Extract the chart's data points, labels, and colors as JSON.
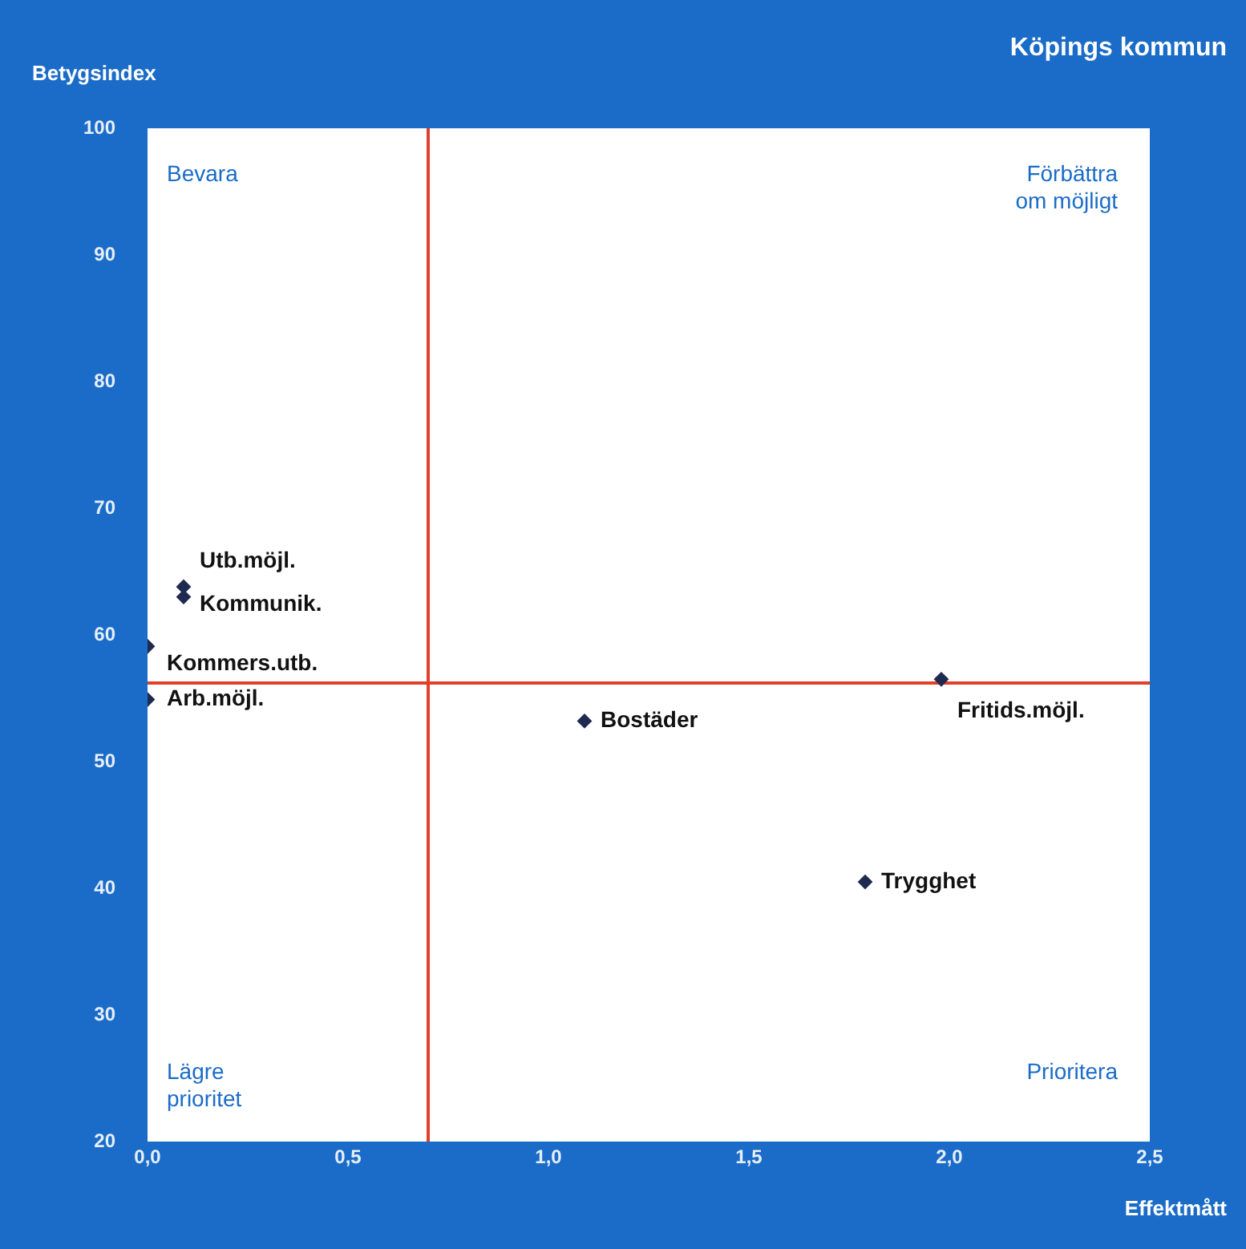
{
  "chart_data": {
    "type": "scatter",
    "title": "Köpings kommun",
    "xlabel": "Effektmått",
    "ylabel": "Betygsindex",
    "xlim": [
      0,
      2.5
    ],
    "ylim": [
      20,
      100
    ],
    "xticks": [
      {
        "value": 0,
        "label": "0,0"
      },
      {
        "value": 0.5,
        "label": "0,5"
      },
      {
        "value": 1,
        "label": "1,0"
      },
      {
        "value": 1.5,
        "label": "1,5"
      },
      {
        "value": 2,
        "label": "2,0"
      },
      {
        "value": 2.5,
        "label": "2,5"
      }
    ],
    "yticks": [
      20,
      30,
      40,
      50,
      60,
      70,
      80,
      90,
      100
    ],
    "marker": "diamond",
    "series": [
      {
        "name": "Utb.möjl.",
        "color": "#1f2a50",
        "x": [
          0.09
        ],
        "values": [
          63.8
        ]
      },
      {
        "name": "Kommunik.",
        "color": "#1f2a50",
        "x": [
          0.09
        ],
        "values": [
          63.0
        ]
      },
      {
        "name": "Kommers.utb.",
        "color": "#1f2a50",
        "x": [
          0
        ],
        "values": [
          59.1
        ]
      },
      {
        "name": "Arb.möjl.",
        "color": "#1f2a50",
        "x": [
          0
        ],
        "values": [
          54.9
        ]
      },
      {
        "name": "Bostäder",
        "color": "#1f2a50",
        "x": [
          1.09
        ],
        "values": [
          53.2
        ]
      },
      {
        "name": "Fritids.möjl.",
        "color": "#1f2a50",
        "x": [
          1.98
        ],
        "values": [
          56.5
        ]
      },
      {
        "name": "Trygghet",
        "color": "#1f2a50",
        "x": [
          1.79
        ],
        "values": [
          40.5
        ]
      }
    ],
    "ref_lines": [
      {
        "axis": "x",
        "value": 0.7,
        "color": "#e2402a"
      },
      {
        "axis": "y",
        "value": 56.2,
        "color": "#e2402a"
      }
    ],
    "annotations": [
      "Bevara",
      "Förbättra\nom möjligt",
      "Lägre\nprioritet",
      "Prioritera"
    ]
  }
}
